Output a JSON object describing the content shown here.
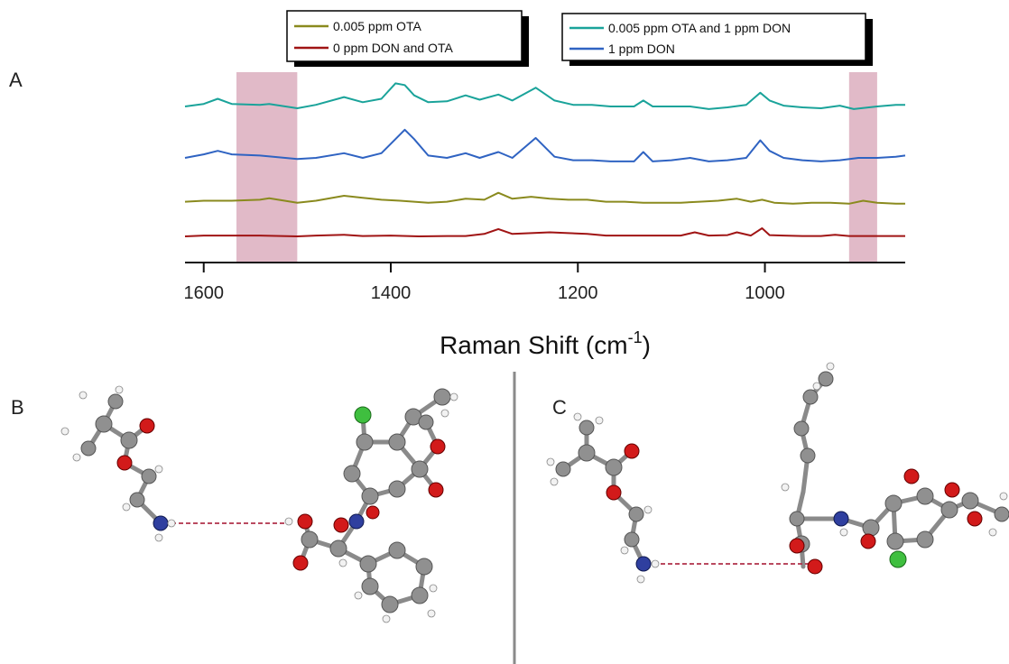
{
  "panels": {
    "a": "A",
    "b": "B",
    "c": "C"
  },
  "chart_data": {
    "type": "line",
    "xlabel": "Raman Shift (cm",
    "xlabel_sup": "-1",
    "xlabel_close": ")",
    "ylabel": "",
    "x_reversed": true,
    "xlim": [
      1620,
      850
    ],
    "xticks": [
      1600,
      1400,
      1200,
      1000
    ],
    "yaxis_visible": false,
    "highlight_regions": [
      {
        "x0": 1565,
        "x1": 1500,
        "color": "#d7a3b5"
      },
      {
        "x0": 910,
        "x1": 880,
        "color": "#d7a3b5"
      }
    ],
    "legends": [
      {
        "entries": [
          {
            "label": "0.005 ppm OTA",
            "color": "#8a8a1e"
          },
          {
            "label": "0 ppm DON and OTA",
            "color": "#a01414"
          }
        ]
      },
      {
        "entries": [
          {
            "label": "0.005 ppm OTA and 1 ppm DON",
            "color": "#1aa39a"
          },
          {
            "label": "1 ppm DON",
            "color": "#2f63c2"
          }
        ]
      }
    ],
    "series": [
      {
        "name": "0.005 ppm OTA and 1 ppm DON",
        "color": "#1aa39a",
        "x": [
          1620,
          1600,
          1585,
          1570,
          1540,
          1530,
          1500,
          1480,
          1450,
          1430,
          1410,
          1395,
          1385,
          1375,
          1360,
          1340,
          1320,
          1305,
          1285,
          1270,
          1245,
          1225,
          1205,
          1185,
          1165,
          1140,
          1130,
          1120,
          1100,
          1080,
          1060,
          1040,
          1020,
          1005,
          995,
          980,
          960,
          940,
          920,
          905,
          880,
          860,
          850
        ],
        "y": [
          2.1,
          2.4,
          3.0,
          2.4,
          2.3,
          2.4,
          1.9,
          2.3,
          3.2,
          2.6,
          3.0,
          4.8,
          4.6,
          3.4,
          2.6,
          2.7,
          3.4,
          2.9,
          3.5,
          2.8,
          4.3,
          2.8,
          2.3,
          2.3,
          2.1,
          2.1,
          2.8,
          2.1,
          2.1,
          2.1,
          1.8,
          2.0,
          2.3,
          3.7,
          2.8,
          2.2,
          2.0,
          1.9,
          2.2,
          1.8,
          2.1,
          2.3,
          2.3
        ]
      },
      {
        "name": "1 ppm DON",
        "color": "#2f63c2",
        "x": [
          1620,
          1600,
          1585,
          1570,
          1540,
          1500,
          1480,
          1450,
          1430,
          1410,
          1395,
          1385,
          1375,
          1360,
          1340,
          1320,
          1305,
          1285,
          1270,
          1245,
          1225,
          1205,
          1185,
          1165,
          1140,
          1130,
          1120,
          1100,
          1080,
          1060,
          1040,
          1020,
          1005,
          995,
          980,
          960,
          940,
          920,
          900,
          880,
          860,
          850
        ],
        "y": [
          1.0,
          1.3,
          1.6,
          1.3,
          1.2,
          0.9,
          1.0,
          1.4,
          1.0,
          1.4,
          2.6,
          3.4,
          2.6,
          1.2,
          1.0,
          1.4,
          1.0,
          1.5,
          1.0,
          2.7,
          1.1,
          0.8,
          0.8,
          0.7,
          0.7,
          1.5,
          0.7,
          0.8,
          1.0,
          0.7,
          0.8,
          1.0,
          2.5,
          1.6,
          1.0,
          0.8,
          0.7,
          0.8,
          1.0,
          1.0,
          1.1,
          1.2
        ]
      },
      {
        "name": "0.005 ppm OTA",
        "color": "#8a8a1e",
        "x": [
          1620,
          1600,
          1570,
          1540,
          1530,
          1500,
          1480,
          1450,
          1430,
          1410,
          1390,
          1360,
          1340,
          1320,
          1300,
          1285,
          1270,
          1250,
          1230,
          1210,
          1190,
          1170,
          1150,
          1130,
          1110,
          1090,
          1070,
          1050,
          1030,
          1015,
          1003,
          990,
          970,
          950,
          930,
          910,
          895,
          880,
          860,
          850
        ],
        "y": [
          0.4,
          0.5,
          0.5,
          0.6,
          0.75,
          0.3,
          0.5,
          1.0,
          0.8,
          0.6,
          0.5,
          0.3,
          0.4,
          0.7,
          0.6,
          1.3,
          0.7,
          0.9,
          0.7,
          0.6,
          0.6,
          0.4,
          0.4,
          0.3,
          0.3,
          0.3,
          0.4,
          0.5,
          0.7,
          0.4,
          0.6,
          0.3,
          0.2,
          0.3,
          0.3,
          0.2,
          0.5,
          0.3,
          0.2,
          0.2
        ]
      },
      {
        "name": "0 ppm DON and OTA",
        "color": "#a01414",
        "x": [
          1620,
          1600,
          1570,
          1540,
          1500,
          1480,
          1450,
          1430,
          1400,
          1370,
          1340,
          1320,
          1300,
          1285,
          1270,
          1250,
          1230,
          1210,
          1190,
          1170,
          1150,
          1130,
          1110,
          1090,
          1075,
          1060,
          1040,
          1030,
          1015,
          1003,
          995,
          980,
          960,
          940,
          925,
          910,
          880,
          850
        ],
        "y": [
          0.0,
          0.1,
          0.1,
          0.1,
          0.0,
          0.1,
          0.2,
          0.05,
          0.1,
          0.0,
          0.05,
          0.05,
          0.3,
          0.9,
          0.3,
          0.4,
          0.5,
          0.4,
          0.3,
          0.1,
          0.1,
          0.1,
          0.1,
          0.1,
          0.5,
          0.1,
          0.15,
          0.5,
          0.1,
          1.0,
          0.15,
          0.1,
          0.05,
          0.05,
          0.2,
          0.05,
          0.05,
          0.05
        ]
      }
    ]
  },
  "divider_color": "#8a8a8a"
}
